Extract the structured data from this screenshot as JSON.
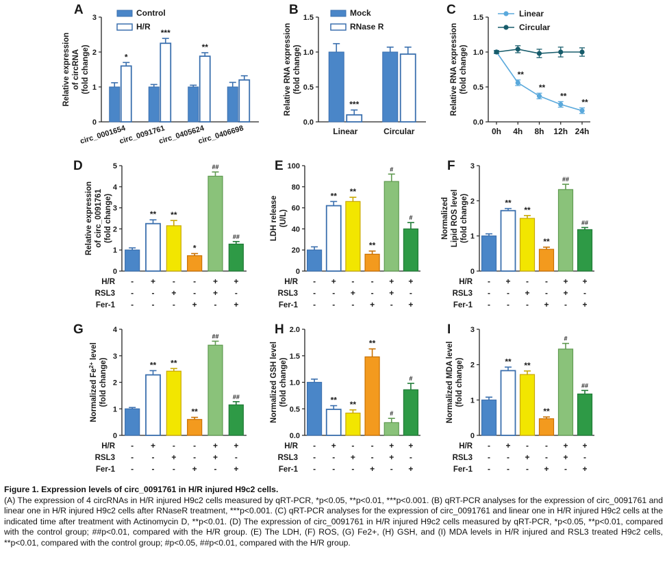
{
  "colors": {
    "blue": "#4a86c8",
    "yellow": "#f2e600",
    "orange": "#f39a1e",
    "lightgreen": "#8ac27a",
    "darkgreen": "#2e9a46",
    "white": "#ffffff",
    "linear_line": "#5aa9dc",
    "circular_line": "#175c6b",
    "stroke": "#3a6fae"
  },
  "caption": {
    "title": "Figure 1. Expression levels of circ_0091761 in H/R injured H9c2 cells.",
    "body": "(A) The expression of 4 circRNAs in H/R injured H9c2 cells measured by qRT-PCR, *p<0.05, **p<0.01, ***p<0.001. (B) qRT-PCR analyses for the expression of circ_0091761 and linear one in H/R injured H9c2 cells after RNaseR treatment, ***p<0.001. (C) qRT-PCR analyses for the expression of circ_0091761 and linear one in H/R injured H9c2 cells at the indicated time after treatment with Actinomycin D, **p<0.01. (D) The expression of circ_0091761 in H/R injured H9c2 cells measured by qRT-PCR, *p<0.05, **p<0.01, compared with the control group; ##p<0.01, compared with the H/R group. (E) The LDH, (F) ROS, (G) Fe2+, (H) GSH, and (I) MDA levels in H/R injured and RSL3 treated H9c2 cells, **p<0.01, compared with the control group; #p<0.05, ##p<0.01, compared with the H/R group."
  },
  "chart_data": [
    {
      "panel": "A",
      "type": "bar",
      "ylabel": "Relative expression of circRNA (fold change)",
      "ylim": [
        0,
        3
      ],
      "yticks": [
        "0",
        "1",
        "2",
        "3"
      ],
      "categories": [
        "circ_0001654",
        "circ_0091761",
        "circ_0405624",
        "circ_0406698"
      ],
      "series": [
        {
          "name": "Control",
          "values": [
            1.0,
            1.0,
            1.0,
            1.0
          ],
          "errors": [
            0.12,
            0.07,
            0.05,
            0.13
          ]
        },
        {
          "name": "H/R",
          "values": [
            1.6,
            2.25,
            1.88,
            1.2
          ],
          "errors": [
            0.1,
            0.14,
            0.1,
            0.12
          ]
        }
      ],
      "significance": [
        "*",
        "***",
        "**",
        ""
      ],
      "legend": "top-left"
    },
    {
      "panel": "B",
      "type": "bar",
      "ylabel": "Relative RNA expression (fold change)",
      "ylim": [
        0,
        1.5
      ],
      "yticks": [
        "0.0",
        "0.5",
        "1.0",
        "1.5"
      ],
      "categories": [
        "Linear",
        "Circular"
      ],
      "series": [
        {
          "name": "Mock",
          "values": [
            1.0,
            1.0
          ],
          "errors": [
            0.12,
            0.07
          ]
        },
        {
          "name": "RNase R",
          "values": [
            0.1,
            0.97
          ],
          "errors": [
            0.07,
            0.1
          ]
        }
      ],
      "significance": [
        "***",
        ""
      ],
      "legend": "top-left"
    },
    {
      "panel": "C",
      "type": "line",
      "ylabel": "Relative RNA expression (fold change)",
      "ylim": [
        0,
        1.5
      ],
      "yticks": [
        "0.0",
        "0.5",
        "1.0",
        "1.5"
      ],
      "x": [
        "0h",
        "4h",
        "8h",
        "12h",
        "24h"
      ],
      "series": [
        {
          "name": "Linear",
          "values": [
            1.0,
            0.56,
            0.37,
            0.25,
            0.16
          ],
          "errors": [
            0.02,
            0.04,
            0.04,
            0.04,
            0.04
          ]
        },
        {
          "name": "Circular",
          "values": [
            1.0,
            1.04,
            0.98,
            1.0,
            1.0
          ],
          "errors": [
            0.02,
            0.05,
            0.06,
            0.07,
            0.06
          ]
        }
      ],
      "significance": [
        "",
        "**",
        "**",
        "**",
        "**"
      ],
      "legend": "top-right"
    },
    {
      "panel": "D",
      "type": "bar",
      "ylabel": "Relative expression of circ_0091761 (fold change)",
      "ylim": [
        0,
        5
      ],
      "yticks": [
        "0",
        "1",
        "2",
        "3",
        "4",
        "5"
      ],
      "values": [
        1.0,
        2.25,
        2.15,
        0.73,
        4.5,
        1.28
      ],
      "errors": [
        0.1,
        0.18,
        0.25,
        0.1,
        0.2,
        0.12
      ],
      "significance": [
        "",
        "**",
        "**",
        "*",
        "##",
        "##"
      ]
    },
    {
      "panel": "E",
      "type": "bar",
      "ylabel": "LDH release (U/L)",
      "ylim": [
        0,
        100
      ],
      "yticks": [
        "0",
        "20",
        "40",
        "60",
        "80",
        "100"
      ],
      "values": [
        20,
        62,
        66,
        16,
        85,
        40
      ],
      "errors": [
        3,
        4,
        4,
        3,
        7,
        6
      ],
      "significance": [
        "",
        "**",
        "**",
        "**",
        "#",
        "#"
      ]
    },
    {
      "panel": "F",
      "type": "bar",
      "ylabel": "Normalized Lipid ROS level (fold change)",
      "ylim": [
        0,
        3
      ],
      "yticks": [
        "0",
        "1",
        "2",
        "3"
      ],
      "values": [
        1.0,
        1.72,
        1.5,
        0.62,
        2.32,
        1.18
      ],
      "errors": [
        0.06,
        0.06,
        0.08,
        0.06,
        0.15,
        0.06
      ],
      "significance": [
        "",
        "**",
        "**",
        "**",
        "##",
        "##"
      ]
    },
    {
      "panel": "G",
      "type": "bar",
      "ylabel": "Normalized Fe2+ level (fold change)",
      "ylim": [
        0,
        4
      ],
      "yticks": [
        "0",
        "1",
        "2",
        "3",
        "4"
      ],
      "values": [
        1.0,
        2.28,
        2.42,
        0.6,
        3.4,
        1.15
      ],
      "errors": [
        0.05,
        0.16,
        0.1,
        0.08,
        0.15,
        0.12
      ],
      "significance": [
        "",
        "**",
        "**",
        "**",
        "##",
        "##"
      ]
    },
    {
      "panel": "H",
      "type": "bar",
      "ylabel": "Normalized GSH level (fold change)",
      "ylim": [
        0,
        2
      ],
      "yticks": [
        "0.0",
        "0.5",
        "1.0",
        "1.5",
        "2.0"
      ],
      "values": [
        1.0,
        0.49,
        0.42,
        1.48,
        0.24,
        0.86
      ],
      "errors": [
        0.06,
        0.07,
        0.06,
        0.15,
        0.08,
        0.12
      ],
      "significance": [
        "",
        "**",
        "**",
        "**",
        "#",
        "#"
      ]
    },
    {
      "panel": "I",
      "type": "bar",
      "ylabel": "Normalized MDA level (fold change)",
      "ylim": [
        0,
        3
      ],
      "yticks": [
        "0",
        "1",
        "2",
        "3"
      ],
      "values": [
        1.0,
        1.83,
        1.72,
        0.47,
        2.44,
        1.17
      ],
      "errors": [
        0.08,
        0.1,
        0.1,
        0.05,
        0.16,
        0.1
      ],
      "significance": [
        "",
        "**",
        "**",
        "**",
        "#",
        "##"
      ]
    }
  ],
  "treatment_rows": [
    {
      "label": "H/R",
      "signs": [
        "-",
        "+",
        "-",
        "-",
        "+",
        "+"
      ]
    },
    {
      "label": "RSL3",
      "signs": [
        "-",
        "-",
        "+",
        "-",
        "+",
        "-"
      ]
    },
    {
      "label": "Fer-1",
      "signs": [
        "-",
        "-",
        "-",
        "+",
        "-",
        "+"
      ]
    }
  ]
}
